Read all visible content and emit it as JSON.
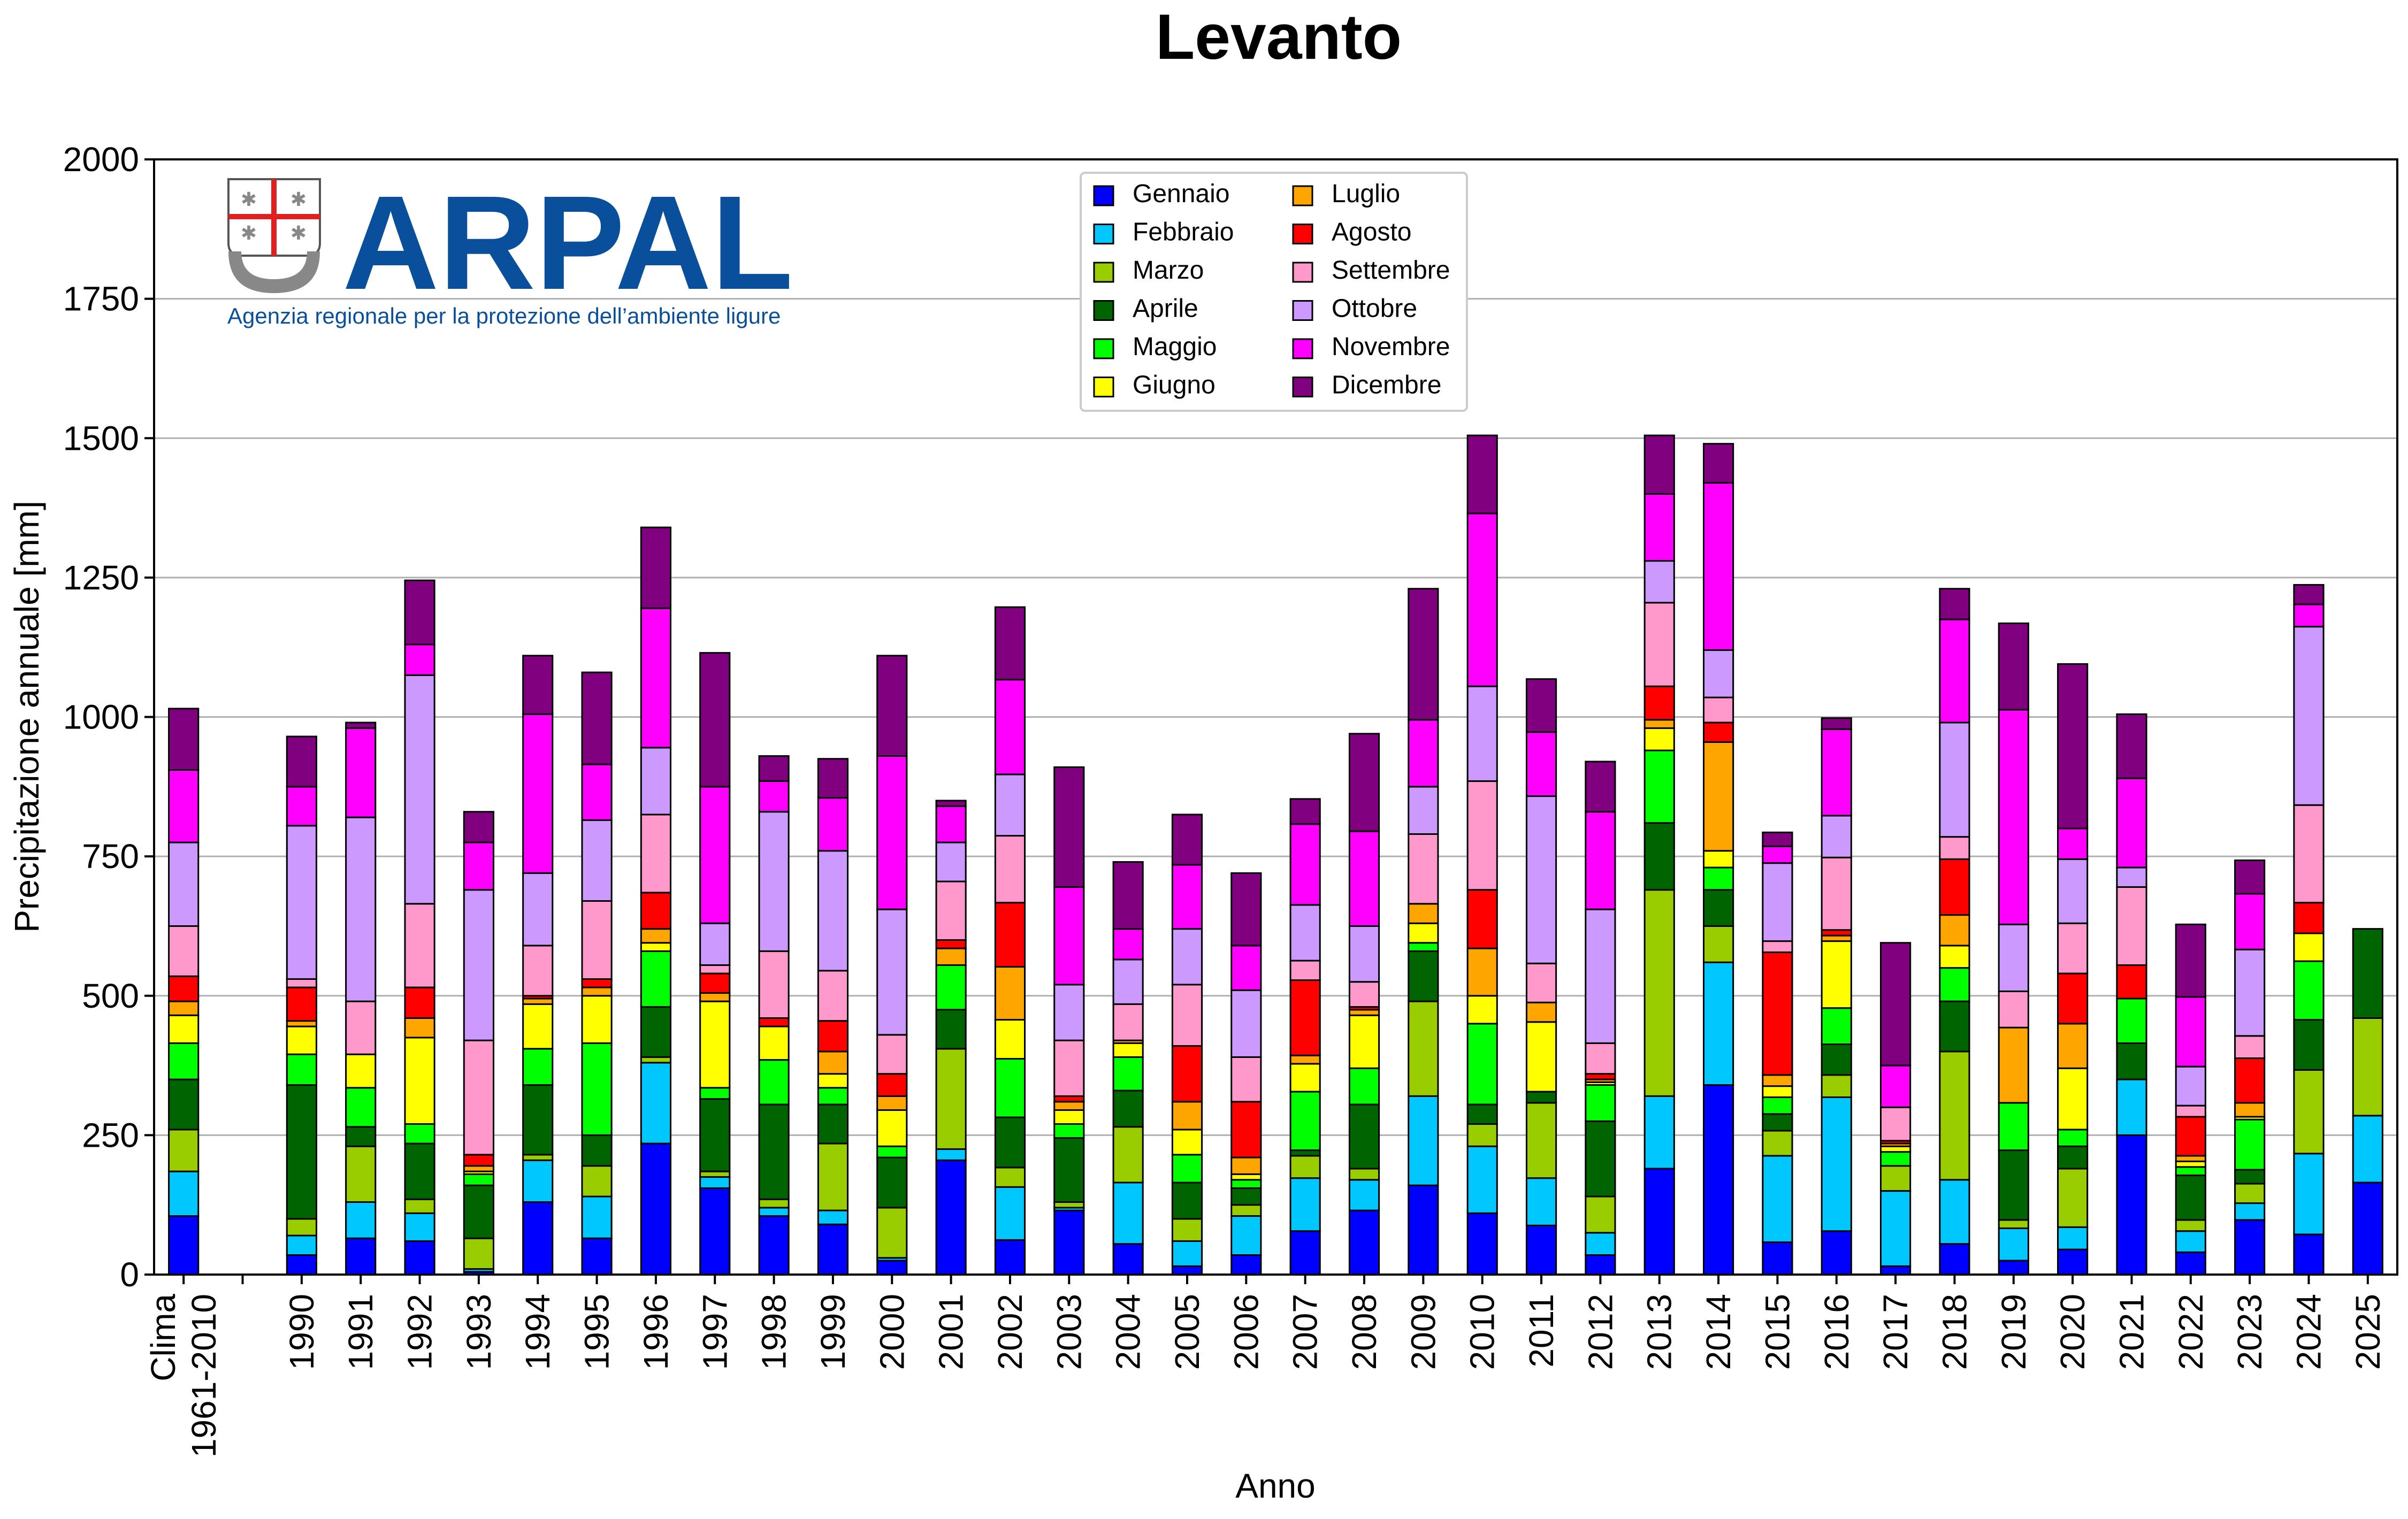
{
  "chart_data": {
    "type": "bar",
    "stacked": true,
    "title": "Levanto",
    "xlabel": "Anno",
    "ylabel": "Precipitazione annuale [mm]",
    "ylim": [
      0,
      2000
    ],
    "yticks": [
      "0",
      "250",
      "500",
      "750",
      "1000",
      "1250",
      "1500",
      "1750",
      "2000"
    ],
    "grid": "horizontal",
    "legend_position": "top-center",
    "categories": [
      "Clima\n1961-2010",
      "",
      "1990",
      "1991",
      "1992",
      "1993",
      "1994",
      "1995",
      "1996",
      "1997",
      "1998",
      "1999",
      "2000",
      "2001",
      "2002",
      "2003",
      "2004",
      "2005",
      "2006",
      "2007",
      "2008",
      "2009",
      "2010",
      "2011",
      "2012",
      "2013",
      "2014",
      "2015",
      "2016",
      "2017",
      "2018",
      "2019",
      "2020",
      "2021",
      "2022",
      "2023",
      "2024",
      "2025"
    ],
    "series": [
      {
        "name": "Gennaio",
        "color": "#0000ff",
        "values": [
          105,
          0,
          35,
          65,
          60,
          5,
          130,
          65,
          235,
          155,
          105,
          90,
          25,
          205,
          62,
          115,
          55,
          15,
          35,
          78,
          115,
          160,
          110,
          88,
          35,
          190,
          340,
          58,
          78,
          15,
          55,
          25,
          45,
          250,
          40,
          98,
          72,
          165
        ]
      },
      {
        "name": "Febbraio",
        "color": "#00c8ff",
        "values": [
          80,
          0,
          35,
          65,
          50,
          5,
          75,
          75,
          145,
          20,
          15,
          25,
          5,
          20,
          95,
          5,
          110,
          45,
          70,
          95,
          55,
          160,
          120,
          85,
          40,
          130,
          220,
          155,
          240,
          135,
          115,
          58,
          40,
          100,
          38,
          30,
          145,
          120
        ]
      },
      {
        "name": "Marzo",
        "color": "#9acd00",
        "values": [
          75,
          0,
          30,
          100,
          25,
          55,
          10,
          55,
          10,
          10,
          15,
          120,
          90,
          180,
          35,
          10,
          100,
          40,
          20,
          40,
          20,
          170,
          40,
          135,
          65,
          370,
          65,
          45,
          40,
          45,
          230,
          15,
          105,
          0,
          20,
          35,
          150,
          175
        ]
      },
      {
        "name": "Aprile",
        "color": "#006400",
        "values": [
          90,
          0,
          240,
          35,
          100,
          95,
          125,
          55,
          90,
          130,
          170,
          70,
          90,
          70,
          90,
          115,
          65,
          65,
          30,
          10,
          115,
          90,
          35,
          20,
          135,
          120,
          65,
          30,
          55,
          0,
          90,
          125,
          40,
          65,
          80,
          25,
          90,
          160
        ]
      },
      {
        "name": "Maggio",
        "color": "#00ff00",
        "values": [
          65,
          0,
          55,
          70,
          35,
          20,
          65,
          165,
          100,
          20,
          80,
          30,
          20,
          80,
          105,
          25,
          60,
          50,
          15,
          105,
          65,
          15,
          145,
          0,
          65,
          130,
          40,
          30,
          65,
          25,
          60,
          85,
          30,
          80,
          15,
          90,
          105,
          0
        ]
      },
      {
        "name": "Giugno",
        "color": "#ffff00",
        "values": [
          50,
          0,
          50,
          60,
          155,
          5,
          80,
          85,
          15,
          155,
          60,
          25,
          65,
          0,
          70,
          25,
          25,
          45,
          10,
          50,
          95,
          35,
          50,
          125,
          5,
          40,
          30,
          20,
          120,
          10,
          40,
          0,
          110,
          0,
          10,
          5,
          50,
          0
        ]
      },
      {
        "name": "Luglio",
        "color": "#ffa500",
        "values": [
          25,
          0,
          10,
          0,
          35,
          10,
          10,
          15,
          25,
          15,
          0,
          40,
          25,
          30,
          95,
          15,
          5,
          50,
          30,
          15,
          10,
          35,
          85,
          35,
          5,
          15,
          195,
          20,
          10,
          5,
          55,
          135,
          80,
          0,
          10,
          25,
          0,
          0
        ]
      },
      {
        "name": "Agosto",
        "color": "#ff0000",
        "values": [
          45,
          0,
          60,
          0,
          55,
          20,
          5,
          15,
          65,
          35,
          15,
          55,
          40,
          15,
          115,
          10,
          0,
          100,
          100,
          135,
          5,
          0,
          105,
          0,
          10,
          60,
          35,
          220,
          10,
          5,
          100,
          0,
          90,
          60,
          70,
          80,
          55,
          0
        ]
      },
      {
        "name": "Settembre",
        "color": "#ff99cc",
        "values": [
          90,
          0,
          15,
          95,
          150,
          205,
          90,
          140,
          140,
          15,
          120,
          90,
          70,
          105,
          120,
          100,
          65,
          110,
          80,
          35,
          45,
          125,
          195,
          70,
          55,
          150,
          45,
          20,
          130,
          60,
          40,
          65,
          90,
          140,
          20,
          40,
          175,
          0
        ]
      },
      {
        "name": "Ottobre",
        "color": "#cc99ff",
        "values": [
          150,
          0,
          275,
          330,
          410,
          270,
          130,
          145,
          120,
          75,
          250,
          215,
          225,
          70,
          110,
          100,
          80,
          100,
          120,
          100,
          100,
          85,
          170,
          300,
          240,
          75,
          85,
          140,
          75,
          0,
          205,
          120,
          115,
          35,
          70,
          155,
          320,
          0
        ]
      },
      {
        "name": "Novembre",
        "color": "#ff00ff",
        "values": [
          130,
          0,
          70,
          160,
          55,
          85,
          285,
          100,
          250,
          245,
          55,
          95,
          275,
          65,
          170,
          175,
          55,
          115,
          80,
          145,
          170,
          120,
          310,
          115,
          175,
          120,
          300,
          30,
          155,
          75,
          185,
          385,
          55,
          160,
          125,
          100,
          40,
          0
        ]
      },
      {
        "name": "Dicembre",
        "color": "#800080",
        "values": [
          110,
          0,
          90,
          10,
          115,
          55,
          105,
          165,
          145,
          240,
          45,
          70,
          180,
          10,
          130,
          215,
          120,
          90,
          130,
          45,
          175,
          235,
          140,
          95,
          90,
          105,
          70,
          25,
          20,
          220,
          55,
          155,
          295,
          115,
          130,
          60,
          35,
          0
        ]
      }
    ]
  },
  "logo": {
    "name": "ARPAL",
    "tagline": "Agenzia regionale per la protezione dell’ambiente ligure",
    "color": "#0a4f9c"
  }
}
